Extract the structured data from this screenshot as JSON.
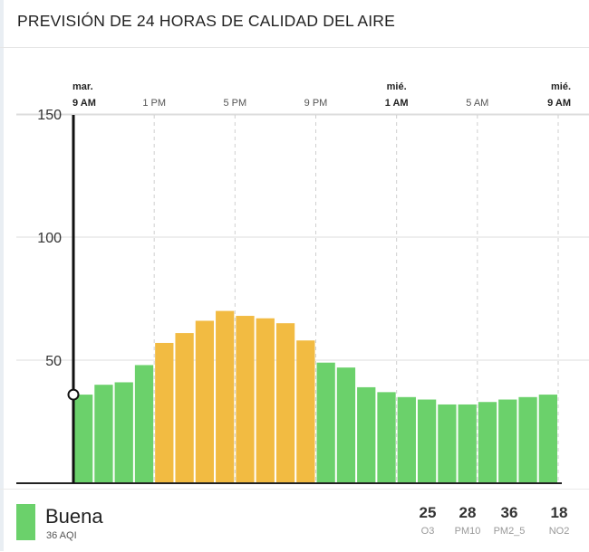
{
  "title": "PREVISIÓN DE 24 HORAS DE CALIDAD DEL AIRE",
  "colors": {
    "good": "#6bd16b",
    "moderate": "#f2bb42"
  },
  "chart_data": {
    "type": "bar",
    "title": "PREVISIÓN DE 24 HORAS DE CALIDAD DEL AIRE",
    "xlabel": "",
    "ylabel": "",
    "ylim": [
      0,
      300
    ],
    "yticks": [
      50,
      100,
      150,
      200,
      250,
      300
    ],
    "grid": true,
    "x_ticks": [
      {
        "hour": 0,
        "day": "mar.",
        "label": "9 AM",
        "bold": true,
        "solid": true
      },
      {
        "hour": 4,
        "day": "",
        "label": "1 PM",
        "bold": false,
        "solid": false
      },
      {
        "hour": 8,
        "day": "",
        "label": "5 PM",
        "bold": false,
        "solid": false
      },
      {
        "hour": 12,
        "day": "",
        "label": "9 PM",
        "bold": false,
        "solid": false
      },
      {
        "hour": 16,
        "day": "mié.",
        "label": "1 AM",
        "bold": true,
        "solid": false
      },
      {
        "hour": 20,
        "day": "",
        "label": "5 AM",
        "bold": false,
        "solid": false
      },
      {
        "hour": 24,
        "day": "mié.",
        "label": "9 AM",
        "bold": true,
        "solid": false
      }
    ],
    "values": [
      36,
      40,
      41,
      48,
      57,
      61,
      66,
      70,
      68,
      67,
      65,
      58,
      49,
      47,
      39,
      37,
      35,
      34,
      32,
      32,
      33,
      34,
      35,
      36
    ],
    "current_value": 36
  },
  "footer": {
    "category": "Buena",
    "aqi_text": "36 AQI",
    "pollutants": [
      {
        "value": "25",
        "name": "O3"
      },
      {
        "value": "28",
        "name": "PM10"
      },
      {
        "value": "36",
        "name": "PM2_5"
      },
      {
        "value": "18",
        "name": "NO2"
      }
    ]
  }
}
